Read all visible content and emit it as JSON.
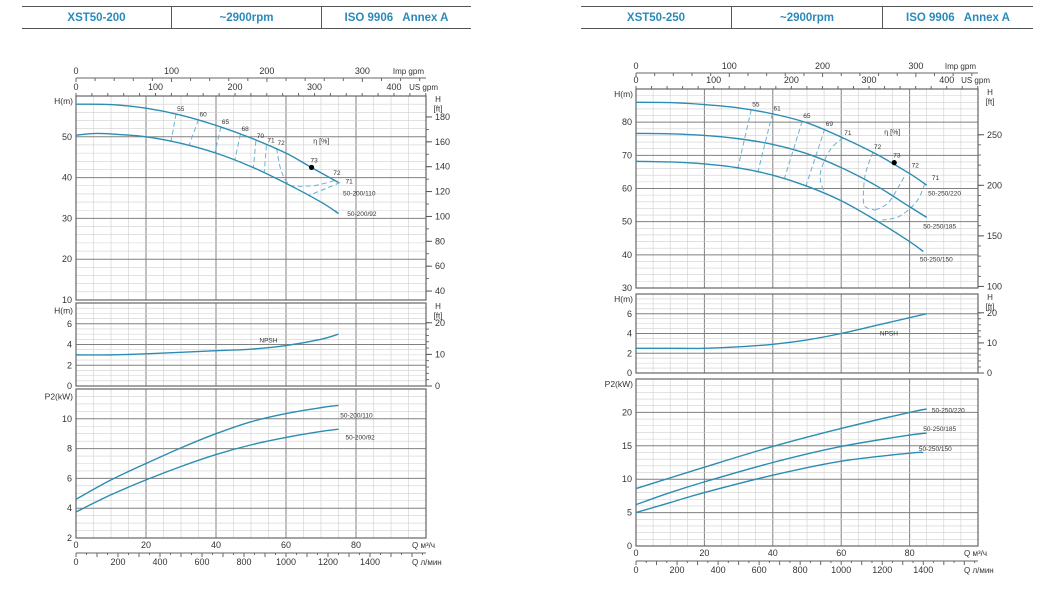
{
  "chart_data": [
    {
      "type": "line",
      "title": "XST50-200",
      "speed": "~2900rpm",
      "standard": "ISO 9906   Annex A",
      "x_axis": {
        "xlim": [
          0,
          100
        ],
        "label_m3h": "Q  м³/ч",
        "ticks_m3h": [
          0,
          20,
          40,
          60,
          80
        ],
        "label_lmin": "Q  л/мин",
        "ticks_lmin": [
          0,
          200,
          400,
          600,
          800,
          1000,
          1200,
          1400
        ],
        "label_imp": "Imp gpm",
        "ticks_imp": [
          0,
          100,
          200,
          300
        ],
        "label_us": "US gpm",
        "ticks_us": [
          0,
          100,
          200,
          300,
          400
        ]
      },
      "head": {
        "ylabel": "H(m)",
        "ylabel_ft": "H",
        "ylabel_ft_unit": "[ft]",
        "ylim": [
          10,
          60
        ],
        "ticks": [
          10,
          20,
          30,
          40,
          50
        ],
        "ticks_ft": [
          40,
          60,
          80,
          100,
          120,
          140,
          160,
          180
        ],
        "efficiency_label": "η [%]",
        "efficiency_label_at": [
          67.8,
          48.3
        ],
        "series": [
          {
            "name": "50-200/110",
            "label_at": [
              76.3,
              36.3
            ],
            "points": [
              [
                0,
                58
              ],
              [
                10,
                57.9
              ],
              [
                20,
                57
              ],
              [
                30,
                55.3
              ],
              [
                40,
                52.8
              ],
              [
                50,
                49.7
              ],
              [
                60,
                46
              ],
              [
                67,
                42.6
              ],
              [
                75,
                38.8
              ]
            ]
          },
          {
            "name": "50-200/92",
            "label_at": [
              77.5,
              31.3
            ],
            "points": [
              [
                0,
                50.4
              ],
              [
                5,
                50.8
              ],
              [
                10,
                50.7
              ],
              [
                20,
                50
              ],
              [
                30,
                48.4
              ],
              [
                40,
                46
              ],
              [
                50,
                42.7
              ],
              [
                60,
                38.6
              ],
              [
                70,
                34
              ],
              [
                75,
                31.2
              ]
            ]
          }
        ],
        "efficiency_lines": [
          {
            "label": "55",
            "points": [
              [
                28.6,
                55.6
              ],
              [
                27.1,
                48.7
              ]
            ]
          },
          {
            "label": "60",
            "points": [
              [
                35,
                54.2
              ],
              [
                32.3,
                47.9
              ]
            ]
          },
          {
            "label": "65",
            "points": [
              [
                41.4,
                52.4
              ],
              [
                39.7,
                46.1
              ]
            ]
          },
          {
            "label": "68",
            "points": [
              [
                47,
                50.7
              ],
              [
                45.4,
                44.4
              ]
            ]
          },
          {
            "label": "70",
            "points": [
              [
                51.4,
                49
              ],
              [
                50.7,
                42.6
              ]
            ]
          },
          {
            "label": "71",
            "points": [
              [
                54.4,
                47.9
              ],
              [
                53.8,
                41.4
              ]
            ]
          },
          {
            "label": "72",
            "points": [
              [
                57.3,
                47.2
              ],
              [
                58.5,
                42
              ],
              [
                60.5,
                38.6
              ],
              [
                63,
                37.9
              ],
              [
                68,
                38
              ]
            ]
          },
          {
            "label": "72",
            "label_at": [
              73.5,
              40.6
            ],
            "points": [
              [
                68,
                38
              ],
              [
                72,
                38.8
              ],
              [
                74.5,
                39.5
              ]
            ]
          },
          {
            "label": "71",
            "label_at": [
              77,
              38.6
            ],
            "points": [
              [
                75.5,
                38.8
              ],
              [
                71,
                37.2
              ],
              [
                66.5,
                35.6
              ]
            ]
          }
        ],
        "bep": {
          "label": "73",
          "q": 67.3,
          "h": 42.5
        }
      },
      "npsh": {
        "ylabel": "H(m)",
        "ylabel_ft": "H",
        "ylabel_ft_unit": "[ft]",
        "ylim": [
          0,
          8
        ],
        "ticks": [
          0,
          2,
          4,
          6
        ],
        "ticks_ft": [
          0,
          10,
          20
        ],
        "series": [
          {
            "name": "NPSH",
            "label_at": [
              52.4,
              4.5
            ],
            "points": [
              [
                0,
                3
              ],
              [
                10,
                3
              ],
              [
                20,
                3.1
              ],
              [
                40,
                3.4
              ],
              [
                50,
                3.55
              ],
              [
                60,
                3.9
              ],
              [
                70,
                4.5
              ],
              [
                75,
                5
              ]
            ]
          }
        ]
      },
      "p2": {
        "ylabel": "P2(kW)",
        "ylim": [
          2,
          12
        ],
        "ticks": [
          2,
          4,
          6,
          8,
          10
        ],
        "series": [
          {
            "name": "50-200/110",
            "label_at": [
              75.5,
              10.3
            ],
            "points": [
              [
                0,
                4.6
              ],
              [
                10,
                5.9
              ],
              [
                20,
                7
              ],
              [
                30,
                8.05
              ],
              [
                40,
                9
              ],
              [
                50,
                9.8
              ],
              [
                60,
                10.35
              ],
              [
                70,
                10.75
              ],
              [
                75,
                10.9
              ]
            ]
          },
          {
            "name": "50-200/92",
            "label_at": [
              77,
              8.8
            ],
            "points": [
              [
                0,
                3.75
              ],
              [
                10,
                4.9
              ],
              [
                20,
                5.9
              ],
              [
                30,
                6.8
              ],
              [
                40,
                7.6
              ],
              [
                50,
                8.25
              ],
              [
                60,
                8.75
              ],
              [
                70,
                9.15
              ],
              [
                75,
                9.3
              ]
            ]
          }
        ]
      }
    },
    {
      "type": "line",
      "title": "XST50-250",
      "speed": "~2900rpm",
      "standard": "ISO 9906   Annex A",
      "x_axis": {
        "xlim": [
          0,
          100
        ],
        "label_m3h": "Q  м³/ч",
        "ticks_m3h": [
          0,
          20,
          40,
          60,
          80
        ],
        "label_lmin": "Q  л/мин",
        "ticks_lmin": [
          0,
          200,
          400,
          600,
          800,
          1000,
          1200,
          1400
        ],
        "label_imp": "Imp gpm",
        "ticks_imp": [
          0,
          100,
          200,
          300
        ],
        "label_us": "US gpm",
        "ticks_us": [
          0,
          100,
          200,
          300,
          400
        ]
      },
      "head": {
        "ylabel": "H(m)",
        "ylabel_ft": "H",
        "ylabel_ft_unit": "[ft]",
        "ylim": [
          30,
          90
        ],
        "ticks": [
          30,
          40,
          50,
          60,
          70,
          80
        ],
        "ticks_ft": [
          100,
          150,
          200,
          250
        ],
        "efficiency_label": "η [%]",
        "efficiency_label_at": [
          72.6,
          76.3
        ],
        "series": [
          {
            "name": "50-250/220",
            "label_at": [
              85.4,
              58.8
            ],
            "points": [
              [
                0,
                86
              ],
              [
                10,
                85.9
              ],
              [
                20,
                85.3
              ],
              [
                30,
                84.3
              ],
              [
                40,
                82.5
              ],
              [
                50,
                79.8
              ],
              [
                60,
                75.5
              ],
              [
                70,
                70.5
              ],
              [
                80,
                64.5
              ],
              [
                85,
                61
              ]
            ]
          },
          {
            "name": "50-250/185",
            "label_at": [
              84,
              48.9
            ],
            "points": [
              [
                0,
                76.6
              ],
              [
                10,
                76.5
              ],
              [
                20,
                76
              ],
              [
                30,
                75
              ],
              [
                40,
                73.3
              ],
              [
                50,
                70.5
              ],
              [
                60,
                66.3
              ],
              [
                70,
                61
              ],
              [
                80,
                54.5
              ],
              [
                85,
                51.3
              ]
            ]
          },
          {
            "name": "50-250/150",
            "label_at": [
              83,
              38.9
            ],
            "points": [
              [
                0,
                68.2
              ],
              [
                10,
                68
              ],
              [
                20,
                67.4
              ],
              [
                30,
                66.2
              ],
              [
                40,
                64
              ],
              [
                50,
                60.7
              ],
              [
                60,
                56.3
              ],
              [
                70,
                50.5
              ],
              [
                80,
                44
              ],
              [
                84,
                41
              ]
            ]
          }
        ],
        "efficiency_lines": [
          {
            "label": "55",
            "points": [
              [
                33.7,
                83.8
              ],
              [
                29.7,
                65.8
              ]
            ]
          },
          {
            "label": "61",
            "points": [
              [
                39.9,
                82.6
              ],
              [
                35.7,
                65.2
              ]
            ]
          },
          {
            "label": "65",
            "points": [
              [
                48.6,
                80.3
              ],
              [
                43.4,
                63
              ]
            ]
          },
          {
            "label": "69",
            "points": [
              [
                55.2,
                78
              ],
              [
                49.6,
                60.5
              ]
            ]
          },
          {
            "label": "71",
            "points": [
              [
                60.6,
                75.3
              ],
              [
                57,
                72
              ],
              [
                54.2,
                66
              ],
              [
                54,
                62
              ],
              [
                55.3,
                58.5
              ]
            ]
          },
          {
            "label": "72",
            "points": [
              [
                69.3,
                71
              ],
              [
                67,
                64
              ],
              [
                66.5,
                56
              ],
              [
                67.5,
                54.2
              ],
              [
                70,
                53.5
              ]
            ]
          },
          {
            "label": "72",
            "label_at": [
              80.6,
              66.3
            ],
            "points": [
              [
                70,
                53.5
              ],
              [
                74,
                56
              ],
              [
                78.7,
                64
              ]
            ]
          },
          {
            "label": "71",
            "label_at": [
              86.5,
              62.5
            ],
            "points": [
              [
                84.5,
                61.5
              ],
              [
                82,
                56
              ],
              [
                77,
                51.6
              ],
              [
                72,
                50.5
              ]
            ]
          }
        ],
        "bep": {
          "label": "73",
          "q": 75.5,
          "h": 67.8
        }
      },
      "npsh": {
        "ylabel": "H(m)",
        "ylabel_ft": "H",
        "ylabel_ft_unit": "[ft]",
        "ylim": [
          0,
          8
        ],
        "ticks": [
          0,
          2,
          4,
          6
        ],
        "ticks_ft": [
          0,
          10,
          20
        ],
        "series": [
          {
            "name": "NPSH",
            "label_at": [
              71.3,
              4.1
            ],
            "points": [
              [
                0,
                2.5
              ],
              [
                10,
                2.5
              ],
              [
                20,
                2.5
              ],
              [
                30,
                2.65
              ],
              [
                40,
                2.9
              ],
              [
                50,
                3.35
              ],
              [
                60,
                4
              ],
              [
                70,
                4.8
              ],
              [
                80,
                5.6
              ],
              [
                85,
                6
              ]
            ]
          }
        ]
      },
      "p2": {
        "ylabel": "P2(kW)",
        "ylim": [
          0,
          25
        ],
        "ticks": [
          0,
          5,
          10,
          15,
          20
        ],
        "series": [
          {
            "name": "50-250/220",
            "label_at": [
              86.5,
              20.4
            ],
            "points": [
              [
                0,
                8.6
              ],
              [
                10,
                10.2
              ],
              [
                20,
                11.8
              ],
              [
                40,
                14.9
              ],
              [
                60,
                17.6
              ],
              [
                80,
                20
              ],
              [
                85,
                20.5
              ]
            ]
          },
          {
            "name": "50-250/185",
            "label_at": [
              84,
              17.7
            ],
            "points": [
              [
                0,
                6.2
              ],
              [
                10,
                8
              ],
              [
                20,
                9.6
              ],
              [
                40,
                12.5
              ],
              [
                60,
                14.9
              ],
              [
                80,
                16.6
              ],
              [
                85,
                16.9
              ]
            ]
          },
          {
            "name": "50-250/150",
            "label_at": [
              82.7,
              14.7
            ],
            "points": [
              [
                0,
                5
              ],
              [
                10,
                6.5
              ],
              [
                20,
                8
              ],
              [
                40,
                10.6
              ],
              [
                60,
                12.7
              ],
              [
                80,
                13.9
              ],
              [
                84,
                14
              ]
            ]
          }
        ]
      }
    }
  ],
  "colors": {
    "curve": "#2b8db3",
    "efficiency": "#6cb2d1",
    "header": "#2a8bbb",
    "grid_major": "#808080",
    "grid_minor": "#cfcfcf"
  }
}
